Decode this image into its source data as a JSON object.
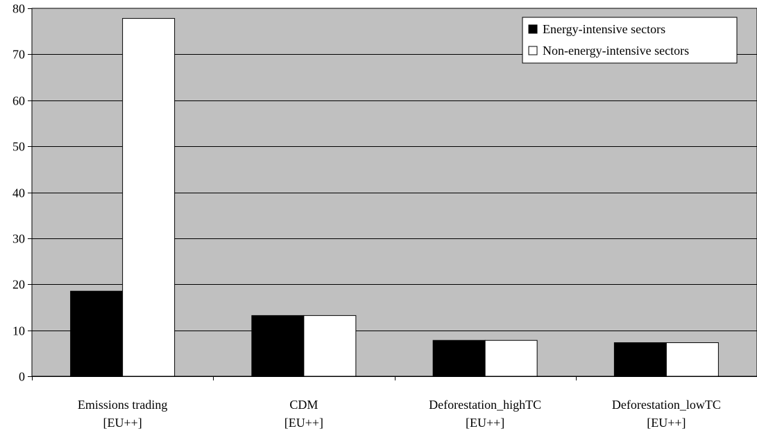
{
  "chart_data": {
    "type": "bar",
    "categories": [
      [
        "Emissions trading",
        "[EU++]"
      ],
      [
        "CDM",
        "[EU++]"
      ],
      [
        "Deforestation_highTC",
        "[EU++]"
      ],
      [
        "Deforestation_lowTC",
        "[EU++]"
      ]
    ],
    "series": [
      {
        "name": "Energy-intensive sectors",
        "values": [
          18.5,
          13.2,
          7.8,
          7.3
        ],
        "color": "#000000"
      },
      {
        "name": "Non-energy-intensive sectors",
        "values": [
          77.8,
          13.2,
          7.8,
          7.3
        ],
        "color": "#ffffff"
      }
    ],
    "ylim": [
      0,
      80
    ],
    "yticks": [
      0,
      10,
      20,
      30,
      40,
      50,
      60,
      70,
      80
    ],
    "grid": true,
    "plot_background": "#c0c0c0",
    "legend_position": "top-right"
  }
}
